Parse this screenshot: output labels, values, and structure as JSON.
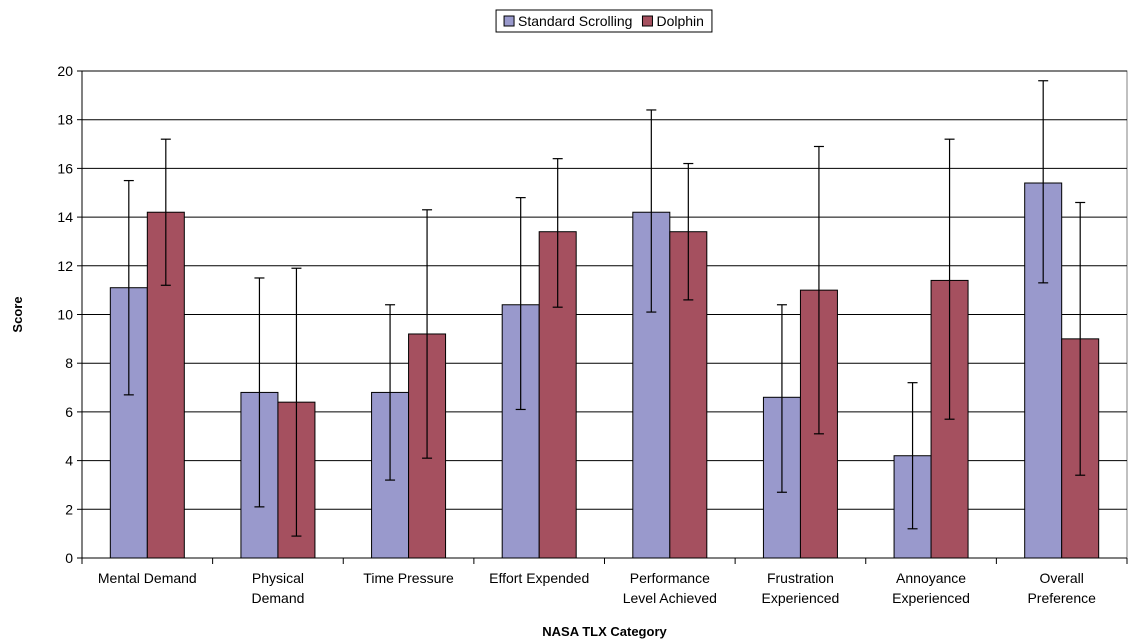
{
  "chart_data": {
    "type": "bar",
    "title": "",
    "xlabel": "NASA TLX Category",
    "ylabel": "Score",
    "ylim": [
      0,
      20
    ],
    "yticks": [
      0,
      2,
      4,
      6,
      8,
      10,
      12,
      14,
      16,
      18,
      20
    ],
    "grid": true,
    "legend_position": "top",
    "categories": [
      [
        "Mental Demand"
      ],
      [
        "Physical",
        "Demand"
      ],
      [
        "Time Pressure"
      ],
      [
        "Effort Expended"
      ],
      [
        "Performance",
        "Level Achieved"
      ],
      [
        "Frustration",
        "Experienced"
      ],
      [
        "Annoyance",
        "Experienced"
      ],
      [
        "Overall",
        "Preference"
      ]
    ],
    "series": [
      {
        "name": "Standard Scrolling",
        "color": "#9999cc",
        "values": [
          11.1,
          6.8,
          6.8,
          10.4,
          14.2,
          6.6,
          4.2,
          15.4
        ],
        "error_low": [
          6.7,
          2.1,
          3.2,
          6.1,
          10.1,
          2.7,
          1.2,
          11.3
        ],
        "error_high": [
          15.5,
          11.5,
          10.4,
          14.8,
          18.4,
          10.4,
          7.2,
          19.6
        ]
      },
      {
        "name": "Dolphin",
        "color": "#a5505f",
        "values": [
          14.2,
          6.4,
          9.2,
          13.4,
          13.4,
          11.0,
          11.4,
          9.0
        ],
        "error_low": [
          11.2,
          0.9,
          4.1,
          10.3,
          10.6,
          5.1,
          5.7,
          3.4
        ],
        "error_high": [
          17.2,
          11.9,
          14.3,
          16.4,
          16.2,
          16.9,
          17.2,
          14.6
        ]
      }
    ]
  }
}
